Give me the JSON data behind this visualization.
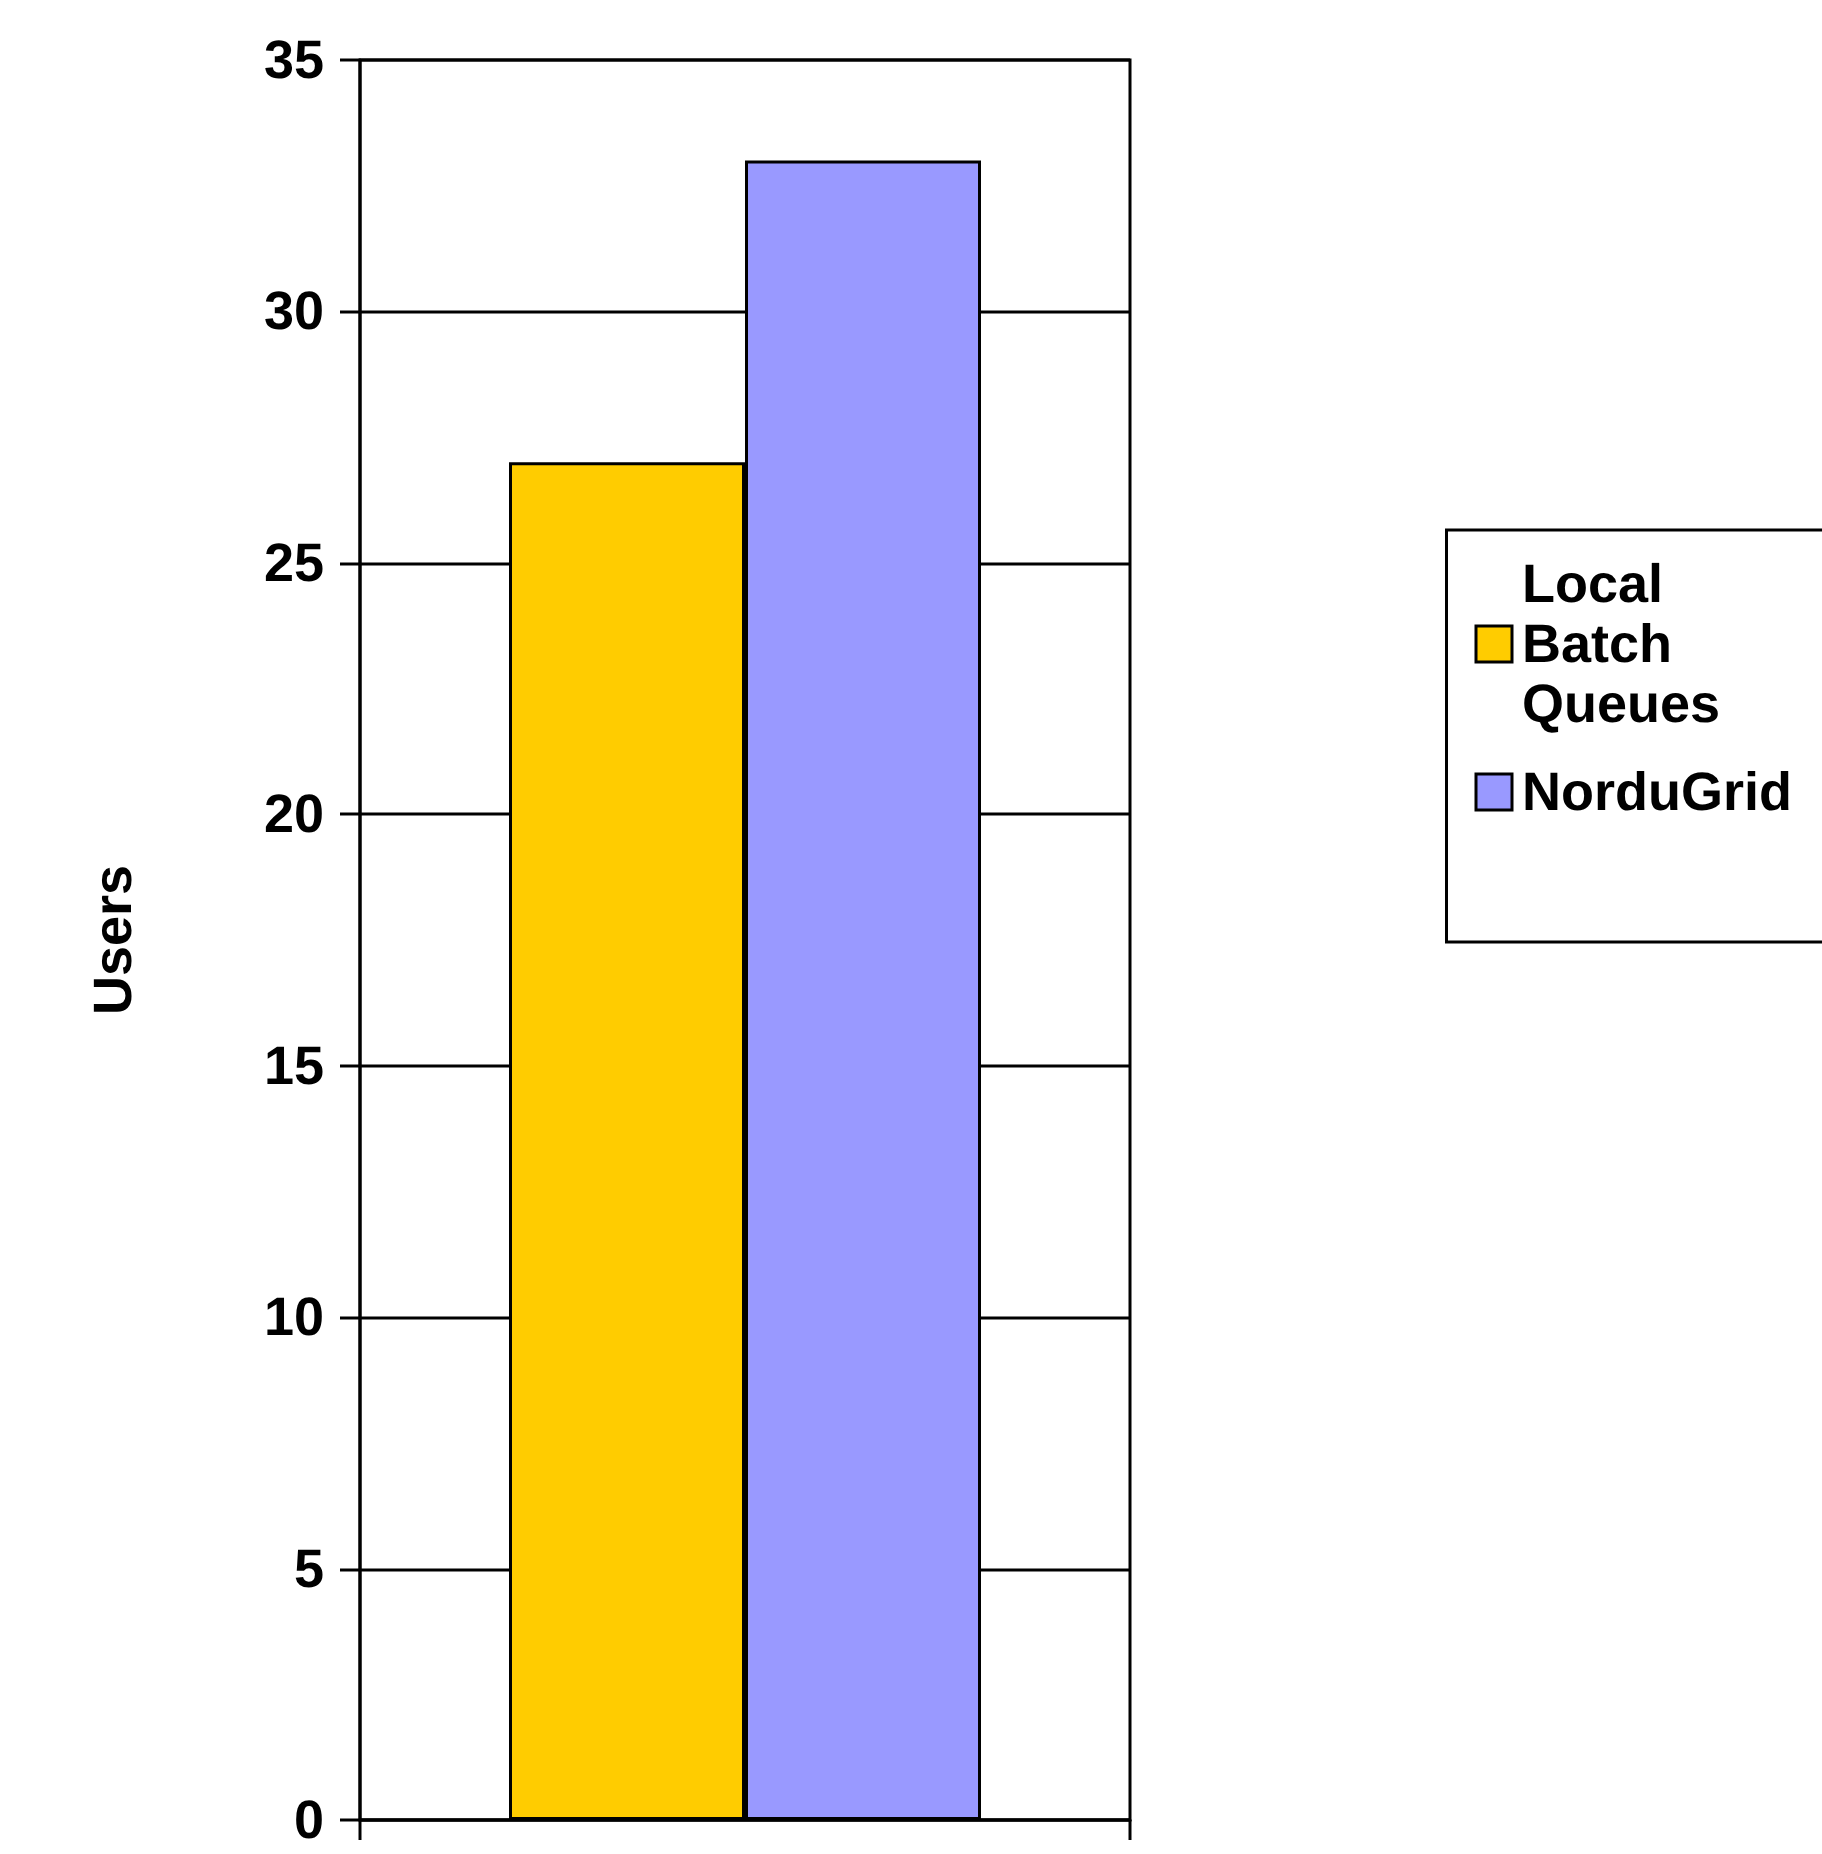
{
  "chart_data": {
    "type": "bar",
    "ylabel": "Users",
    "categories": [
      null
    ],
    "series": [
      {
        "name": "Local Batch Queues",
        "color": "#ffcc00",
        "values": [
          27
        ]
      },
      {
        "name": "NorduGrid",
        "color": "#9999ff",
        "values": [
          33
        ]
      }
    ],
    "ylim": [
      0,
      35
    ],
    "yticks": [
      0,
      5,
      10,
      15,
      20,
      25,
      30,
      35
    ],
    "grid": "y",
    "legend": "right"
  }
}
